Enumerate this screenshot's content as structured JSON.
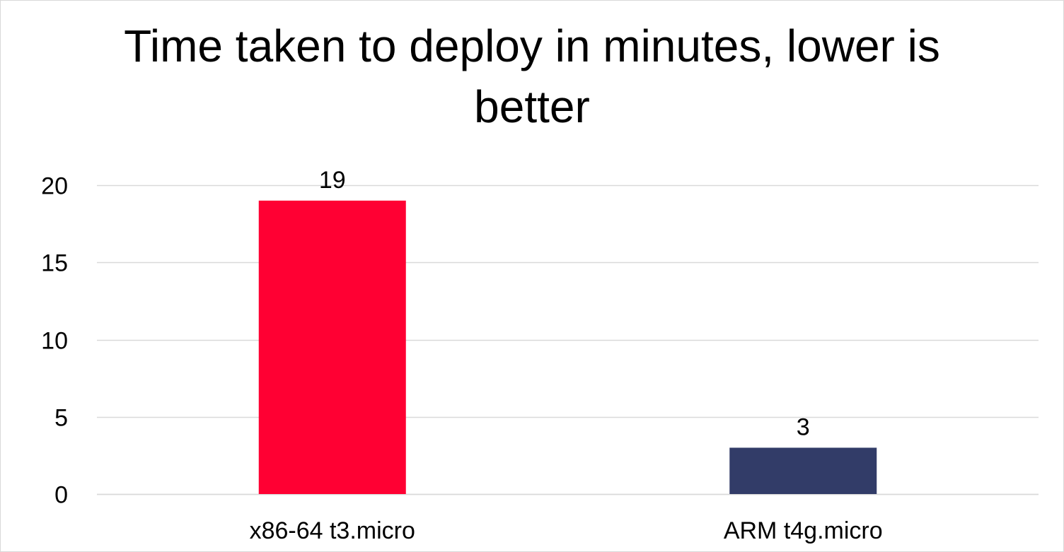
{
  "chart_data": {
    "type": "bar",
    "title_lines": [
      "Time taken to deploy in minutes, lower is",
      "better"
    ],
    "title": "Time taken to deploy in minutes, lower is better",
    "xlabel": "",
    "ylabel": "",
    "categories": [
      "x86-64 t3.micro",
      "ARM t4g.micro"
    ],
    "values": [
      19,
      3
    ],
    "data_labels": [
      "19",
      "3"
    ],
    "bar_colors": [
      "#ff0033",
      "#323c68"
    ],
    "ylim": [
      0,
      20
    ],
    "yticks": [
      0,
      5,
      10,
      15,
      20
    ],
    "ytick_labels": [
      "0",
      "5",
      "10",
      "15",
      "20"
    ],
    "grid": true,
    "gridline_color": "#d9d9d9",
    "legend": "none"
  }
}
